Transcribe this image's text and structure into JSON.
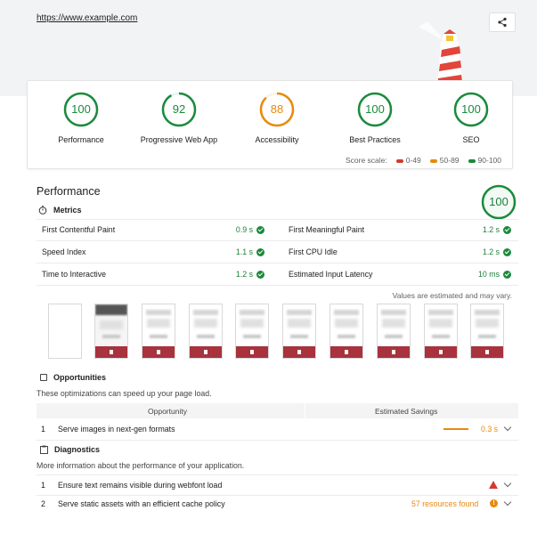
{
  "header": {
    "url": "https://www.example.com"
  },
  "gauges": [
    {
      "score": "100",
      "label": "Performance",
      "fraction": 1.0,
      "color": "#1b8a3c"
    },
    {
      "score": "92",
      "label": "Progressive Web App",
      "fraction": 0.92,
      "color": "#1b8a3c"
    },
    {
      "score": "88",
      "label": "Accessibility",
      "fraction": 0.88,
      "color": "#e8890c"
    },
    {
      "score": "100",
      "label": "Best Practices",
      "fraction": 1.0,
      "color": "#1b8a3c"
    },
    {
      "score": "100",
      "label": "SEO",
      "fraction": 1.0,
      "color": "#1b8a3c"
    }
  ],
  "scale": {
    "label": "Score scale:",
    "items": [
      {
        "range": "0-49",
        "color": "#d23b2f"
      },
      {
        "range": "50-89",
        "color": "#e8890c"
      },
      {
        "range": "90-100",
        "color": "#1b8a3c"
      }
    ]
  },
  "performance": {
    "title": "Performance",
    "score": "100",
    "metrics_label": "Metrics",
    "metrics": [
      {
        "name": "First Contentful Paint",
        "value": "0.9 s"
      },
      {
        "name": "First Meaningful Paint",
        "value": "1.2 s"
      },
      {
        "name": "Speed Index",
        "value": "1.1 s"
      },
      {
        "name": "First CPU Idle",
        "value": "1.2 s"
      },
      {
        "name": "Time to Interactive",
        "value": "1.2 s"
      },
      {
        "name": "Estimated Input Latency",
        "value": "10 ms"
      }
    ],
    "note": "Values are estimated and may vary."
  },
  "opportunities": {
    "title": "Opportunities",
    "desc": "These optimizations can speed up your page load.",
    "col_opportunity": "Opportunity",
    "col_savings": "Estimated Savings",
    "rows": [
      {
        "num": "1",
        "text": "Serve images in next-gen formats",
        "savings": "0.3 s"
      }
    ]
  },
  "diagnostics": {
    "title": "Diagnostics",
    "desc": "More information about the performance of your application.",
    "rows": [
      {
        "num": "1",
        "text": "Ensure text remains visible during webfont load",
        "status": ""
      },
      {
        "num": "2",
        "text": "Serve static assets with an efficient cache policy",
        "status": "57 resources found"
      }
    ]
  },
  "colors": {
    "pass": "#1b8a3c",
    "average": "#e8890c",
    "fail": "#d23b2f"
  }
}
